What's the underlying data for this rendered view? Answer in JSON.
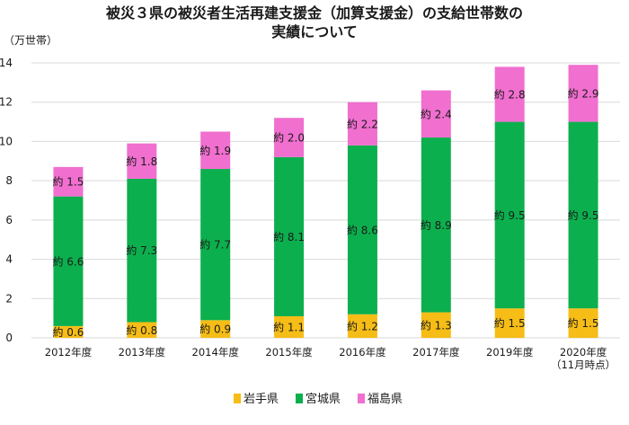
{
  "chart_data": {
    "type": "bar",
    "stacked": true,
    "title_lines": [
      "被災３県の被災者生活再建支援金（加算支援金）の支給世帯数の",
      "実績について"
    ],
    "y_unit": "（万世帯）",
    "ylim": [
      0,
      14
    ],
    "yticks": [
      "0",
      "2",
      "4",
      "6",
      "8",
      "10",
      "12",
      "14"
    ],
    "grid": true,
    "legend_position": "bottom",
    "categories": [
      [
        "2012年度"
      ],
      [
        "2013年度"
      ],
      [
        "2014年度"
      ],
      [
        "2015年度"
      ],
      [
        "2016年度"
      ],
      [
        "2017年度"
      ],
      [
        "2019年度"
      ],
      [
        "2020年度",
        "（11月時点）"
      ]
    ],
    "series": [
      {
        "name": "岩手県",
        "color": "#f6bd16",
        "values": [
          0.6,
          0.8,
          0.9,
          1.1,
          1.2,
          1.3,
          1.5,
          1.5
        ],
        "labels": [
          "約 0.6",
          "約 0.8",
          "約 0.9",
          "約 1.1",
          "約 1.2",
          "約 1.3",
          "約 1.5",
          "約 1.5"
        ]
      },
      {
        "name": "宮城県",
        "color": "#0caf4d",
        "values": [
          6.6,
          7.3,
          7.7,
          8.1,
          8.6,
          8.9,
          9.5,
          9.5
        ],
        "labels": [
          "約 6.6",
          "約 7.3",
          "約 7.7",
          "約 8.1",
          "約 8.6",
          "約 8.9",
          "約 9.5",
          "約 9.5"
        ]
      },
      {
        "name": "福島県",
        "color": "#f06fcf",
        "values": [
          1.5,
          1.8,
          1.9,
          2.0,
          2.2,
          2.4,
          2.8,
          2.9
        ],
        "labels": [
          "約 1.5",
          "約 1.8",
          "約 1.9",
          "約 2.0",
          "約 2.2",
          "約 2.4",
          "約 2.8",
          "約 2.9"
        ]
      }
    ]
  }
}
